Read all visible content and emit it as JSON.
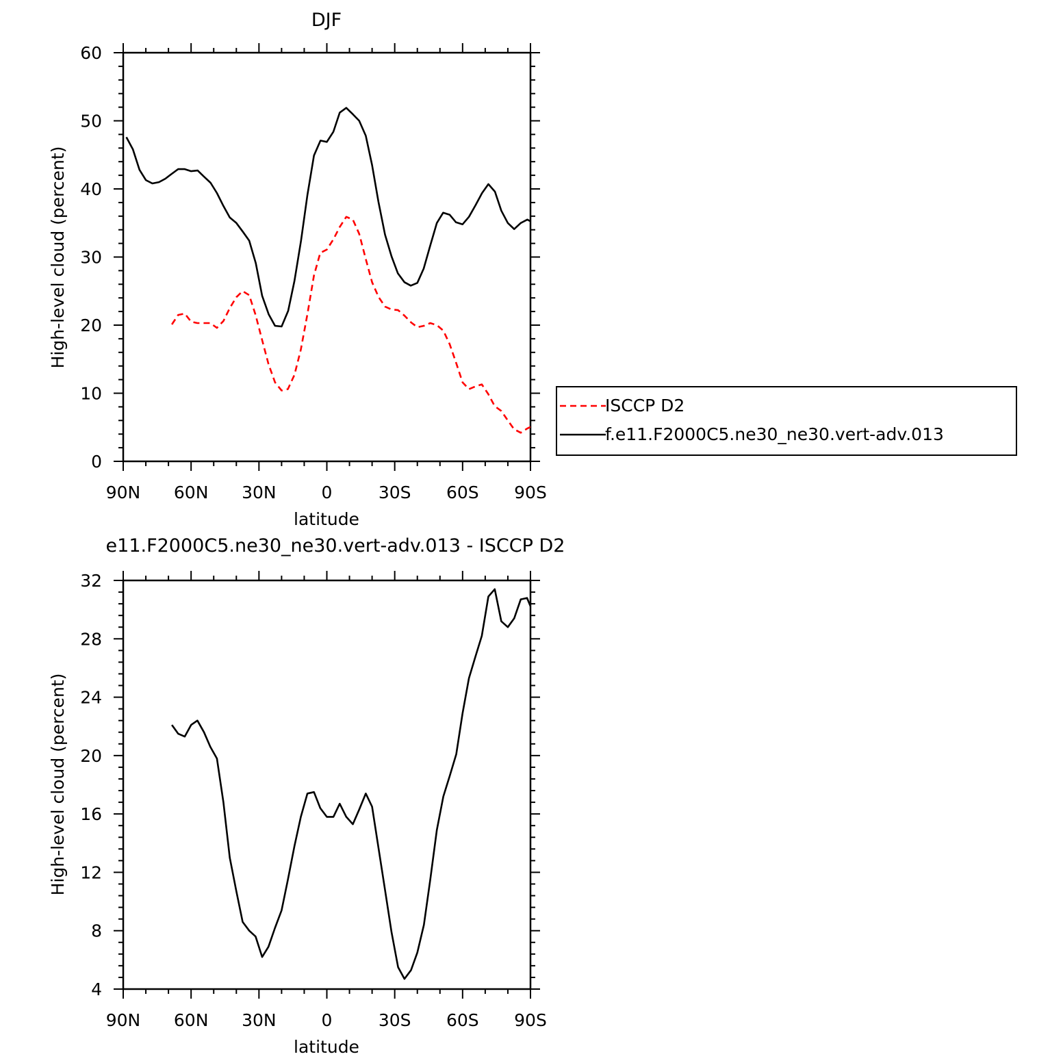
{
  "chart_data": [
    {
      "type": "line",
      "title": "DJF",
      "xlabel": "latitude",
      "ylabel": "High-level cloud (percent)",
      "xlim": [
        90,
        -90
      ],
      "ylim": [
        0,
        60
      ],
      "x_ticks": [
        90,
        60,
        30,
        0,
        -30,
        -60,
        -90
      ],
      "x_tick_labels": [
        "90N",
        "60N",
        "30N",
        "0",
        "30S",
        "60S",
        "90S"
      ],
      "y_ticks": [
        0,
        10,
        20,
        30,
        40,
        50,
        60
      ],
      "y_tick_labels": [
        "0",
        "10",
        "20",
        "30",
        "40",
        "50",
        "60"
      ],
      "legend": "right",
      "series": [
        {
          "name": "ISCCP D2",
          "color": "#ff0000",
          "dash": "dashed",
          "points": [
            [
              68.5,
              20.1
            ],
            [
              65.7,
              21.5
            ],
            [
              62.8,
              21.7
            ],
            [
              60,
              20.5
            ],
            [
              57.2,
              20.3
            ],
            [
              54.3,
              20.3
            ],
            [
              51.5,
              20.3
            ],
            [
              48.6,
              19.6
            ],
            [
              45.7,
              20.6
            ],
            [
              42.9,
              22.5
            ],
            [
              40,
              24.1
            ],
            [
              37.2,
              25
            ],
            [
              34.3,
              24.4
            ],
            [
              31.5,
              21.5
            ],
            [
              28.6,
              17.8
            ],
            [
              25.8,
              14.3
            ],
            [
              22.9,
              11.6
            ],
            [
              20,
              10.4
            ],
            [
              17.2,
              10.6
            ],
            [
              14.3,
              12.7
            ],
            [
              11.5,
              16.4
            ],
            [
              8.6,
              21.6
            ],
            [
              5.7,
              27.3
            ],
            [
              2.9,
              30.6
            ],
            [
              0,
              31.1
            ],
            [
              -2.9,
              32.6
            ],
            [
              -5.7,
              34.4
            ],
            [
              -8.6,
              35.9
            ],
            [
              -11.5,
              35.5
            ],
            [
              -14.3,
              33.4
            ],
            [
              -17.2,
              29.7
            ],
            [
              -20,
              26.3
            ],
            [
              -22.9,
              24.1
            ],
            [
              -25.8,
              22.7
            ],
            [
              -28.6,
              22.3
            ],
            [
              -31.5,
              22.2
            ],
            [
              -34.3,
              21.4
            ],
            [
              -37.2,
              20.4
            ],
            [
              -40,
              19.7
            ],
            [
              -42.9,
              19.9
            ],
            [
              -45.7,
              20.3
            ],
            [
              -48.6,
              20
            ],
            [
              -51.5,
              19.2
            ],
            [
              -54.3,
              17.2
            ],
            [
              -57.2,
              14.4
            ],
            [
              -60,
              11.6
            ],
            [
              -62.8,
              10.6
            ],
            [
              -65.7,
              11
            ],
            [
              -68.5,
              11.3
            ],
            [
              -71.3,
              9.9
            ],
            [
              -74.2,
              8.1
            ],
            [
              -77.1,
              7.4
            ],
            [
              -80,
              6
            ],
            [
              -82.8,
              4.7
            ],
            [
              -85.7,
              4.2
            ],
            [
              -88.5,
              4.8
            ],
            [
              -91.4,
              5.3
            ]
          ]
        },
        {
          "name": "f.e11.F2000C5.ne30_ne30.vert-adv.013",
          "color": "#000000",
          "dash": "solid",
          "points": [
            [
              88.6,
              47.6
            ],
            [
              85.7,
              45.8
            ],
            [
              82.8,
              42.8
            ],
            [
              80,
              41.3
            ],
            [
              77.1,
              40.8
            ],
            [
              74.2,
              41
            ],
            [
              71.4,
              41.5
            ],
            [
              68.6,
              42.2
            ],
            [
              65.7,
              42.9
            ],
            [
              62.8,
              42.9
            ],
            [
              60,
              42.6
            ],
            [
              57.1,
              42.7
            ],
            [
              54.3,
              41.8
            ],
            [
              51.4,
              40.9
            ],
            [
              48.6,
              39.4
            ],
            [
              45.7,
              37.5
            ],
            [
              42.9,
              35.8
            ],
            [
              40,
              35
            ],
            [
              37.1,
              33.7
            ],
            [
              34.3,
              32.4
            ],
            [
              31.4,
              29.1
            ],
            [
              28.6,
              24.3
            ],
            [
              25.7,
              21.6
            ],
            [
              22.9,
              19.9
            ],
            [
              20,
              19.8
            ],
            [
              17.1,
              22.1
            ],
            [
              14.3,
              26.5
            ],
            [
              11.4,
              32.4
            ],
            [
              8.6,
              39.1
            ],
            [
              5.7,
              44.9
            ],
            [
              2.8,
              47.1
            ],
            [
              0,
              46.9
            ],
            [
              -2.9,
              48.4
            ],
            [
              -5.7,
              51.2
            ],
            [
              -8.6,
              51.9
            ],
            [
              -11.4,
              51
            ],
            [
              -14.3,
              50
            ],
            [
              -17.2,
              47.8
            ],
            [
              -20,
              43.5
            ],
            [
              -22.8,
              38.1
            ],
            [
              -25.7,
              33.3
            ],
            [
              -28.6,
              30.1
            ],
            [
              -31.4,
              27.6
            ],
            [
              -34.3,
              26.3
            ],
            [
              -37.1,
              25.8
            ],
            [
              -40,
              26.2
            ],
            [
              -42.8,
              28.3
            ],
            [
              -45.7,
              31.7
            ],
            [
              -48.6,
              35
            ],
            [
              -51.4,
              36.5
            ],
            [
              -54.3,
              36.2
            ],
            [
              -57.1,
              35.1
            ],
            [
              -60,
              34.8
            ],
            [
              -62.8,
              35.9
            ],
            [
              -65.7,
              37.6
            ],
            [
              -68.6,
              39.4
            ],
            [
              -71.4,
              40.7
            ],
            [
              -74.3,
              39.6
            ],
            [
              -77.1,
              36.8
            ],
            [
              -80,
              35
            ],
            [
              -82.8,
              34.1
            ],
            [
              -85.7,
              35
            ],
            [
              -88.6,
              35.5
            ],
            [
              -91.4,
              35
            ]
          ]
        }
      ]
    },
    {
      "type": "line",
      "title": "e11.F2000C5.ne30_ne30.vert-adv.013 - ISCCP D2",
      "xlabel": "latitude",
      "ylabel": "High-level cloud (percent)",
      "xlim": [
        90,
        -90
      ],
      "ylim": [
        4,
        32
      ],
      "x_ticks": [
        90,
        60,
        30,
        0,
        -30,
        -60,
        -90
      ],
      "x_tick_labels": [
        "90N",
        "60N",
        "30N",
        "0",
        "30S",
        "60S",
        "90S"
      ],
      "y_ticks": [
        4,
        8,
        12,
        16,
        20,
        24,
        28,
        32
      ],
      "y_tick_labels": [
        "4",
        "8",
        "12",
        "16",
        "20",
        "24",
        "28",
        "32"
      ],
      "series": [
        {
          "color": "#000000",
          "dash": "solid",
          "points": [
            [
              68.5,
              22.1
            ],
            [
              65.7,
              21.5
            ],
            [
              62.8,
              21.3
            ],
            [
              60,
              22.1
            ],
            [
              57.2,
              22.4
            ],
            [
              54.3,
              21.6
            ],
            [
              51.5,
              20.6
            ],
            [
              48.6,
              19.8
            ],
            [
              45.7,
              16.8
            ],
            [
              42.9,
              13
            ],
            [
              40,
              10.7
            ],
            [
              37.2,
              8.6
            ],
            [
              34.3,
              8
            ],
            [
              31.5,
              7.6
            ],
            [
              28.6,
              6.2
            ],
            [
              25.8,
              6.9
            ],
            [
              22.9,
              8.2
            ],
            [
              20,
              9.4
            ],
            [
              17.2,
              11.5
            ],
            [
              14.3,
              13.8
            ],
            [
              11.5,
              15.8
            ],
            [
              8.6,
              17.4
            ],
            [
              5.7,
              17.5
            ],
            [
              2.9,
              16.4
            ],
            [
              0,
              15.8
            ],
            [
              -2.9,
              15.8
            ],
            [
              -5.7,
              16.7
            ],
            [
              -8.6,
              15.8
            ],
            [
              -11.5,
              15.3
            ],
            [
              -14.3,
              16.3
            ],
            [
              -17.2,
              17.4
            ],
            [
              -20,
              16.5
            ],
            [
              -22.9,
              13.6
            ],
            [
              -25.8,
              10.7
            ],
            [
              -28.6,
              7.9
            ],
            [
              -31.5,
              5.5
            ],
            [
              -34.3,
              4.7
            ],
            [
              -37.2,
              5.3
            ],
            [
              -40,
              6.5
            ],
            [
              -42.9,
              8.4
            ],
            [
              -45.7,
              11.5
            ],
            [
              -48.6,
              14.9
            ],
            [
              -51.5,
              17.2
            ],
            [
              -54.3,
              18.6
            ],
            [
              -57.2,
              20.1
            ],
            [
              -60,
              22.9
            ],
            [
              -62.8,
              25.3
            ],
            [
              -65.7,
              26.8
            ],
            [
              -68.5,
              28.2
            ],
            [
              -71.4,
              30.9
            ],
            [
              -74.2,
              31.4
            ],
            [
              -77.1,
              29.2
            ],
            [
              -80,
              28.8
            ],
            [
              -82.8,
              29.4
            ],
            [
              -85.7,
              30.7
            ],
            [
              -88.5,
              30.8
            ],
            [
              -91.4,
              29.7
            ]
          ]
        }
      ]
    }
  ]
}
